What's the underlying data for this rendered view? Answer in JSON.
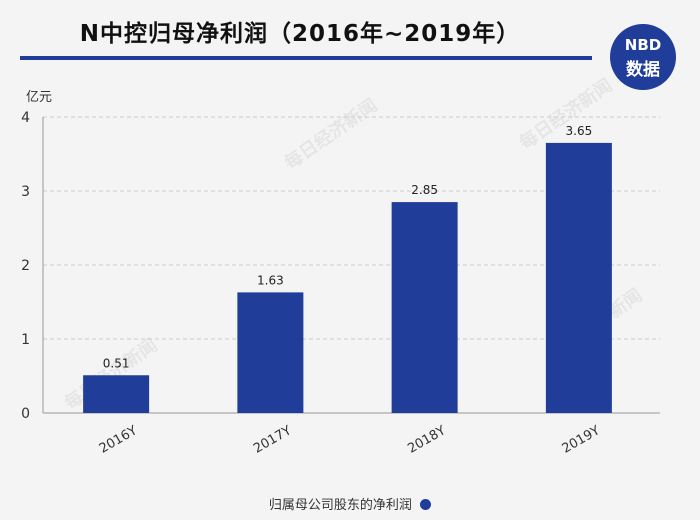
{
  "header": {
    "title": "N中控归母净利润（2016年~2019年）"
  },
  "logo": {
    "line1": "NBD",
    "line2": "数据"
  },
  "watermark": "每日经济新闻",
  "colors": {
    "bar": "#1f3d99",
    "accent": "#1f3d99",
    "grid": "#cccccc",
    "text": "#333333"
  },
  "chart_data": {
    "type": "bar",
    "title": "N中控归母净利润（2016年~2019年）",
    "unit_label": "亿元",
    "categories": [
      "2016Y",
      "2017Y",
      "2018Y",
      "2019Y"
    ],
    "series": [
      {
        "name": "归属母公司股东的净利润",
        "values": [
          0.51,
          1.63,
          2.85,
          3.65
        ]
      }
    ],
    "data_labels": [
      "0.51",
      "1.63",
      "2.85",
      "3.65"
    ],
    "yticks": [
      "0",
      "1",
      "2",
      "3",
      "4"
    ],
    "ylim": [
      0,
      4
    ],
    "grid": true,
    "legend_position": "bottom"
  }
}
